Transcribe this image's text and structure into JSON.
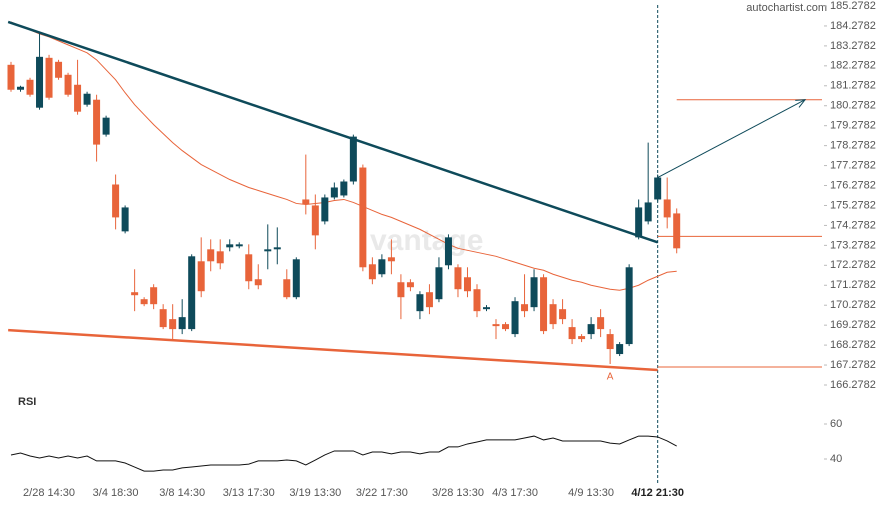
{
  "chart_data": {
    "type": "candlestick",
    "source": "autochartist.com",
    "watermark": "vantage",
    "up_color": "#0e4a5a",
    "down_color": "#e8643a",
    "categories": [
      null,
      null,
      null,
      null,
      "2/28 14:30",
      null,
      null,
      null,
      null,
      null,
      null,
      "3/4 18:30",
      null,
      null,
      null,
      null,
      null,
      null,
      "3/8 14:30",
      null,
      null,
      null,
      null,
      null,
      null,
      "3/13 17:30",
      null,
      null,
      null,
      null,
      null,
      null,
      "3/19 13:30",
      null,
      null,
      null,
      null,
      null,
      null,
      "3/22 17:30",
      null,
      null,
      null,
      null,
      null,
      null,
      null,
      "3/28 13:30",
      null,
      null,
      null,
      null,
      null,
      "4/3 17:30",
      null,
      null,
      null,
      null,
      null,
      null,
      null,
      "4/9 13:30",
      null,
      null,
      null,
      null,
      null,
      null,
      "4/12 21:30",
      null,
      null
    ],
    "open": [
      182.33,
      181.08,
      181.58,
      180.18,
      182.68,
      182.48,
      181.83,
      181.33,
      180.33,
      180.58,
      178.83,
      176.33,
      173.98,
      170.93,
      170.58,
      171.18,
      170.08,
      169.58,
      169.08,
      169.08,
      172.48,
      173.08,
      172.98,
      173.18,
      173.23,
      172.83,
      171.58,
      172.98,
      173.08,
      171.58,
      170.68,
      175.58,
      175.28,
      174.48,
      175.68,
      175.78,
      176.48,
      177.18,
      172.33,
      171.83,
      172.68,
      171.43,
      171.43,
      169.98,
      170.93,
      170.58,
      172.28,
      172.18,
      171.68,
      171.08,
      170.08,
      169.33,
      169.33,
      168.83,
      170.33,
      170.18,
      171.68,
      170.33,
      170.08,
      169.18,
      168.73,
      168.83,
      169.68,
      168.83,
      167.83,
      168.33,
      173.68,
      174.48,
      175.58,
      175.58,
      174.88
    ],
    "high": [
      182.48,
      181.28,
      181.68,
      183.98,
      182.83,
      182.58,
      181.93,
      182.58,
      180.98,
      180.83,
      179.78,
      176.83,
      175.28,
      172.08,
      170.68,
      171.33,
      170.33,
      170.33,
      170.58,
      172.83,
      173.68,
      173.58,
      173.58,
      173.58,
      173.43,
      173.33,
      172.33,
      174.33,
      174.18,
      172.08,
      172.68,
      177.83,
      175.83,
      175.83,
      176.43,
      176.58,
      178.83,
      177.33,
      172.68,
      172.83,
      173.58,
      171.83,
      171.58,
      170.98,
      171.33,
      172.68,
      173.83,
      172.33,
      172.18,
      171.33,
      170.28,
      169.58,
      169.43,
      170.68,
      171.83,
      172.08,
      171.83,
      170.58,
      170.58,
      169.58,
      168.83,
      169.68,
      170.08,
      169.08,
      168.43,
      172.33,
      175.58,
      178.43,
      176.83,
      176.68,
      175.13
    ],
    "low": [
      180.98,
      180.98,
      180.73,
      180.08,
      180.58,
      181.58,
      180.73,
      179.83,
      180.23,
      177.48,
      178.73,
      174.08,
      173.88,
      169.98,
      170.23,
      170.08,
      169.08,
      168.58,
      168.83,
      168.98,
      170.68,
      171.98,
      172.08,
      172.98,
      173.13,
      171.08,
      171.08,
      172.08,
      172.33,
      170.58,
      170.58,
      174.83,
      173.08,
      174.33,
      175.58,
      175.68,
      176.33,
      171.98,
      171.33,
      171.68,
      171.83,
      169.58,
      170.98,
      169.58,
      169.83,
      170.43,
      172.08,
      170.68,
      170.68,
      169.68,
      169.98,
      168.58,
      168.98,
      168.68,
      169.68,
      169.98,
      168.83,
      169.08,
      169.33,
      168.33,
      168.43,
      168.58,
      168.68,
      167.33,
      167.73,
      168.23,
      173.58,
      174.33,
      175.48,
      174.13,
      172.88
    ],
    "close": [
      181.08,
      181.23,
      180.83,
      182.73,
      180.68,
      181.68,
      180.83,
      179.98,
      180.88,
      178.33,
      179.68,
      174.68,
      175.18,
      170.78,
      170.33,
      170.33,
      169.18,
      169.08,
      169.68,
      172.73,
      170.98,
      172.48,
      172.38,
      173.33,
      173.33,
      171.48,
      171.28,
      173.08,
      173.18,
      170.68,
      172.58,
      175.33,
      173.78,
      175.68,
      176.18,
      176.48,
      178.73,
      172.18,
      171.58,
      172.58,
      172.48,
      170.68,
      171.18,
      170.83,
      170.18,
      172.18,
      173.68,
      171.08,
      170.98,
      169.98,
      170.18,
      169.23,
      169.08,
      170.48,
      169.98,
      171.68,
      168.98,
      169.33,
      169.58,
      168.58,
      168.58,
      169.33,
      169.08,
      168.08,
      168.33,
      172.18,
      175.18,
      175.43,
      176.68,
      174.68,
      173.13
    ],
    "moving_average": {
      "color": "#e8643a",
      "values": [
        184.48,
        184.28,
        184.08,
        183.88,
        183.73,
        183.53,
        183.33,
        183.13,
        182.93,
        182.58,
        182.08,
        181.58,
        180.93,
        180.33,
        179.83,
        179.33,
        178.88,
        178.43,
        178.03,
        177.68,
        177.33,
        177.08,
        176.83,
        176.58,
        176.38,
        176.18,
        176.03,
        175.88,
        175.73,
        175.58,
        175.38,
        175.33,
        175.38,
        175.43,
        175.53,
        175.58,
        175.43,
        175.23,
        175.03,
        174.83,
        174.68,
        174.48,
        174.28,
        174.08,
        173.83,
        173.58,
        173.33,
        173.13,
        173.03,
        172.93,
        172.83,
        172.73,
        172.58,
        172.43,
        172.28,
        172.13,
        172.03,
        171.83,
        171.68,
        171.53,
        171.43,
        171.28,
        171.18,
        171.08,
        171.03,
        171.13,
        171.28,
        171.53,
        171.73,
        171.93,
        171.98
      ]
    },
    "ylim": [
      166.2782,
      185.2782
    ],
    "yticks": [
      185.2782,
      184.2782,
      183.2782,
      182.2782,
      181.2782,
      180.2782,
      179.2782,
      178.2782,
      177.2782,
      176.2782,
      175.2782,
      174.2782,
      173.2782,
      172.2782,
      171.2782,
      170.2782,
      169.2782,
      168.2782,
      167.2782,
      166.2782
    ],
    "trend_lines": [
      {
        "color": "#0e4a5a",
        "x": [
          -0.3,
          68
        ],
        "y": [
          184.48,
          173.43
        ]
      },
      {
        "color": "#e8643a",
        "x": [
          -0.3,
          68
        ],
        "y": [
          169.03,
          167.03
        ]
      }
    ],
    "forecast_arrow": {
      "color": "#0e4a5a",
      "x": [
        68,
        83.5
      ],
      "y": [
        176.68,
        180.58
      ]
    },
    "levels": [
      {
        "x": 70,
        "price": 180.58
      },
      {
        "x": 68,
        "price": 173.73
      },
      {
        "x": 68,
        "price": 167.18
      }
    ],
    "level_color": "#e8643a",
    "annotation": {
      "text": "A",
      "x": 63,
      "price": 166.88
    },
    "rsi": {
      "label": "RSI",
      "color": "#111111",
      "ylim": [
        25,
        70
      ],
      "yticks": [
        60,
        40
      ],
      "values": [
        42.3,
        43.4,
        41.7,
        40.6,
        41.7,
        40.6,
        41.7,
        40.6,
        41.7,
        38.9,
        38.9,
        38.9,
        37.7,
        35.4,
        33.1,
        33.1,
        33.7,
        33.7,
        34.9,
        35.4,
        36.0,
        36.6,
        36.6,
        36.6,
        36.6,
        37.1,
        38.9,
        38.9,
        38.9,
        39.4,
        38.9,
        36.6,
        39.4,
        42.3,
        44.6,
        44.6,
        44.6,
        42.3,
        44.0,
        44.0,
        42.9,
        44.0,
        44.0,
        42.9,
        44.0,
        44.0,
        46.9,
        46.9,
        48.6,
        49.7,
        50.9,
        50.9,
        50.9,
        50.9,
        52.0,
        53.1,
        50.9,
        52.0,
        50.3,
        50.3,
        50.3,
        50.3,
        50.3,
        49.1,
        48.6,
        50.9,
        53.1,
        53.1,
        52.6,
        50.3,
        47.4
      ]
    }
  }
}
